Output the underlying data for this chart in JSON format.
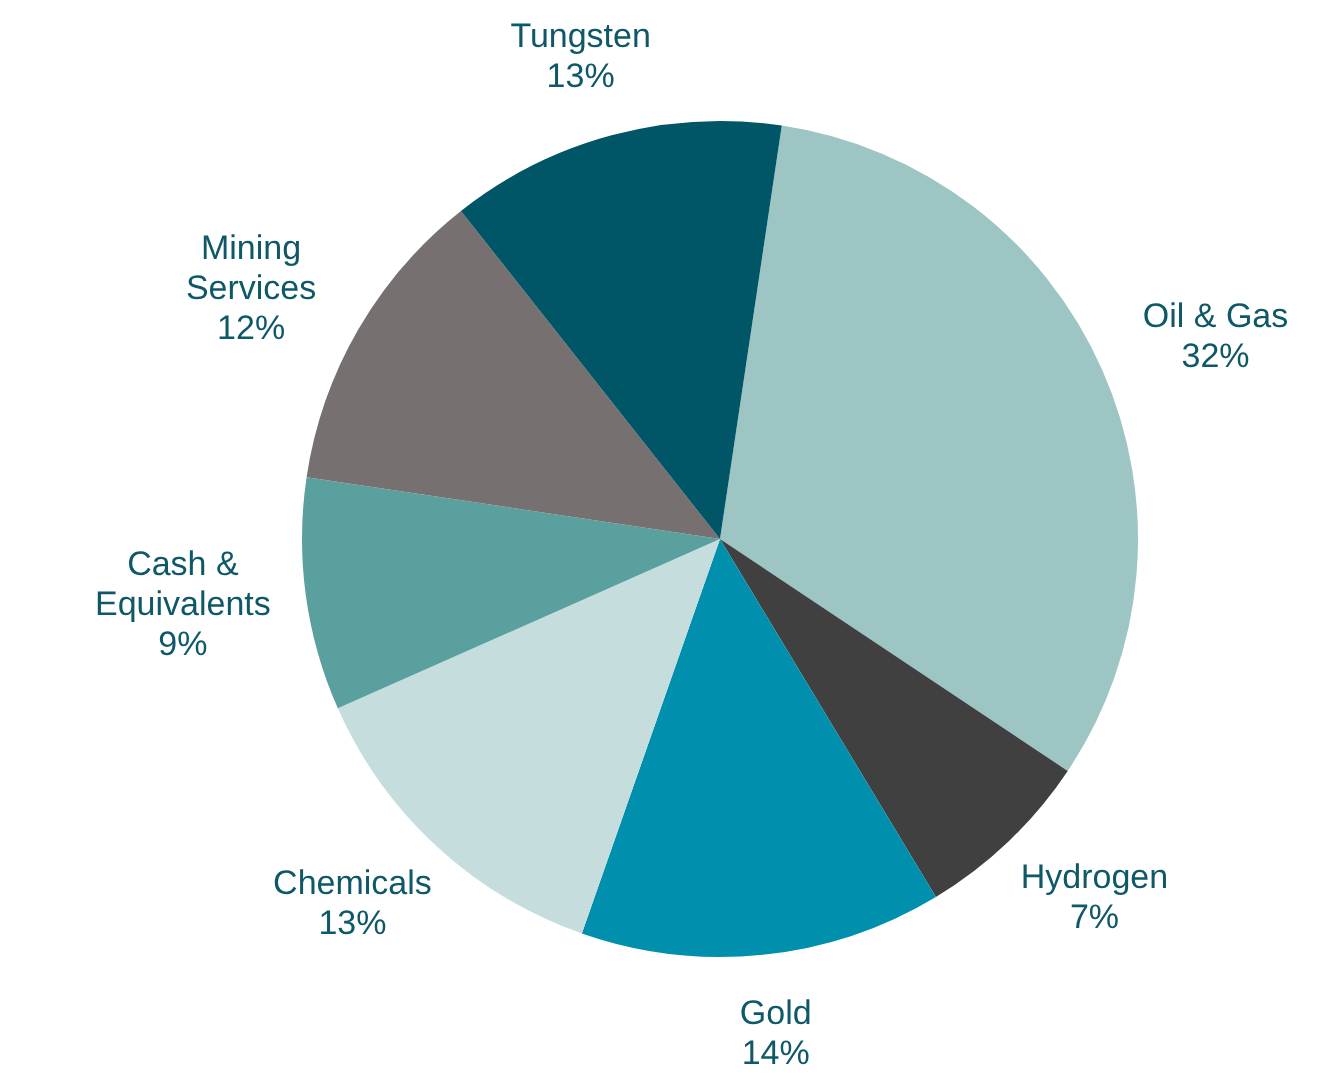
{
  "chart_data": {
    "type": "pie",
    "categories": [
      "Oil & Gas",
      "Hydrogen",
      "Gold",
      "Chemicals",
      "Cash & Equivalents",
      "Mining Services",
      "Tungsten"
    ],
    "values": [
      32,
      7,
      14,
      13,
      9,
      12,
      13
    ],
    "value_labels": [
      "32%",
      "7%",
      "14%",
      "13%",
      "9%",
      "12%",
      "13%"
    ],
    "colors": [
      "#9dc5c4",
      "#404040",
      "#0090ad",
      "#c5dedd",
      "#5aa09e",
      "#767170",
      "#005566"
    ],
    "legend": false
  }
}
